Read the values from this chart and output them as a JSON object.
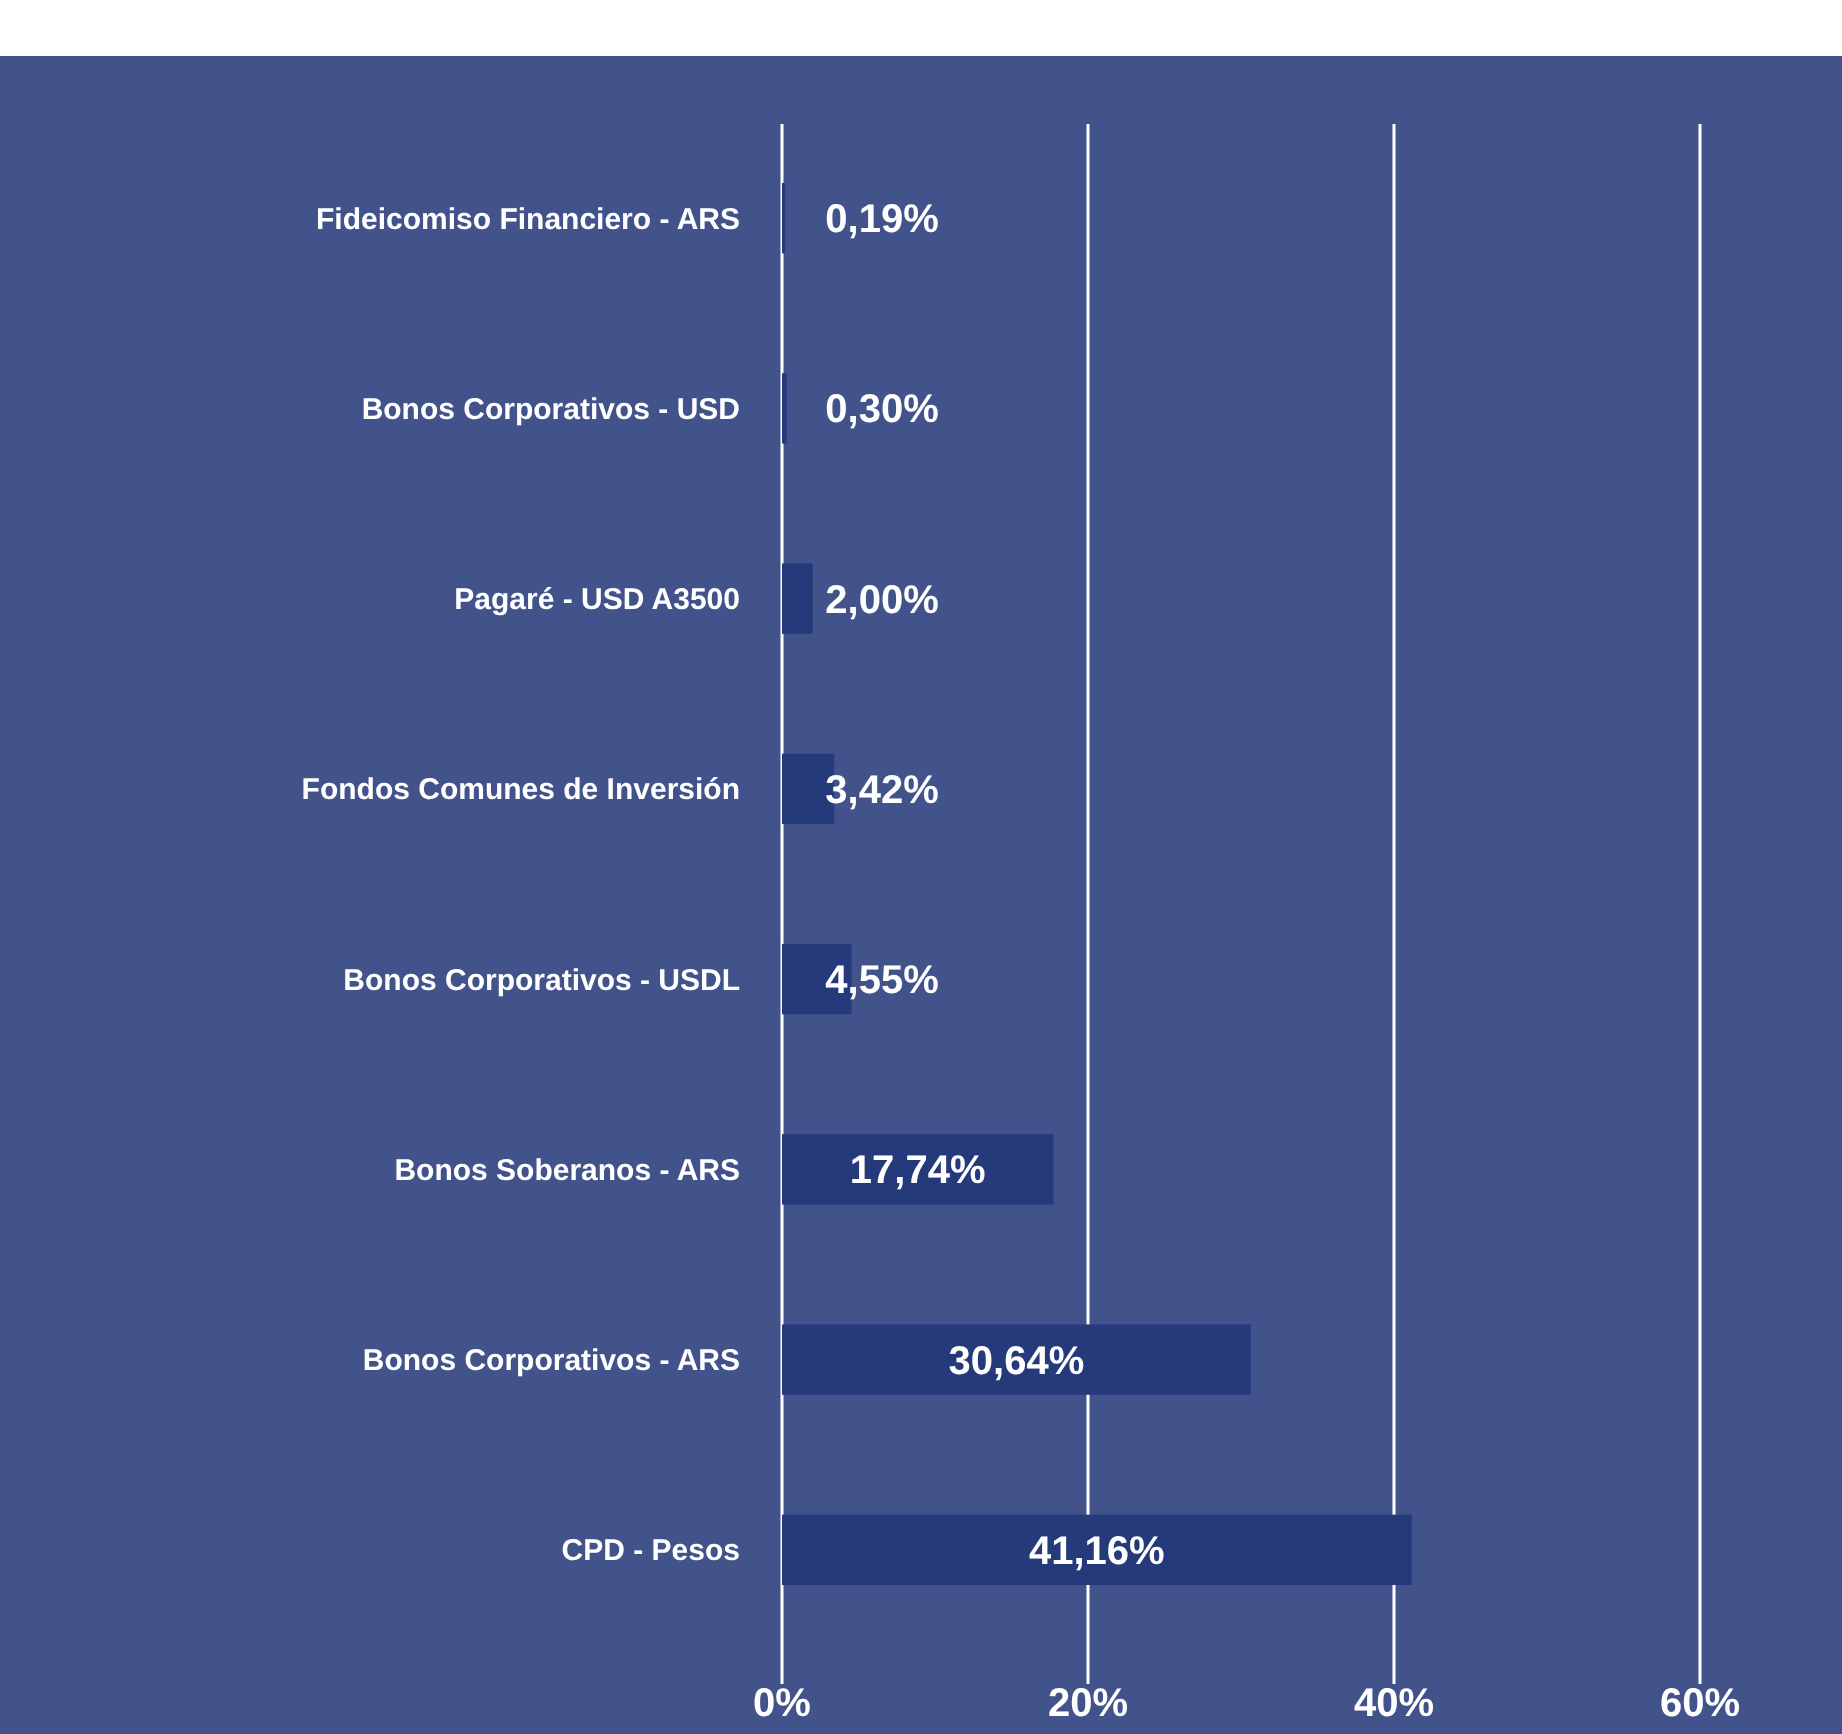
{
  "chart_data": {
    "type": "bar",
    "orientation": "horizontal",
    "categories": [
      "Fideicomiso Financiero - ARS",
      "Bonos Corporativos - USD",
      "Pagaré - USD A3500",
      "Fondos Comunes de Inversión",
      "Bonos Corporativos - USDL",
      "Bonos Soberanos - ARS",
      "Bonos Corporativos - ARS",
      "CPD - Pesos"
    ],
    "values": [
      0.19,
      0.3,
      2.0,
      3.42,
      4.55,
      17.74,
      30.64,
      41.16
    ],
    "value_labels": [
      "0,19%",
      "0,30%",
      "2,00%",
      "3,42%",
      "4,55%",
      "17,74%",
      "30,64%",
      "41,16%"
    ],
    "color": "#253a7a",
    "xlim": [
      0,
      60
    ],
    "xticks": [
      {
        "value": 0,
        "label": "0%"
      },
      {
        "value": 20,
        "label": "20%"
      },
      {
        "value": 40,
        "label": "40%"
      },
      {
        "value": 60,
        "label": "60%"
      }
    ],
    "grid": "x"
  }
}
